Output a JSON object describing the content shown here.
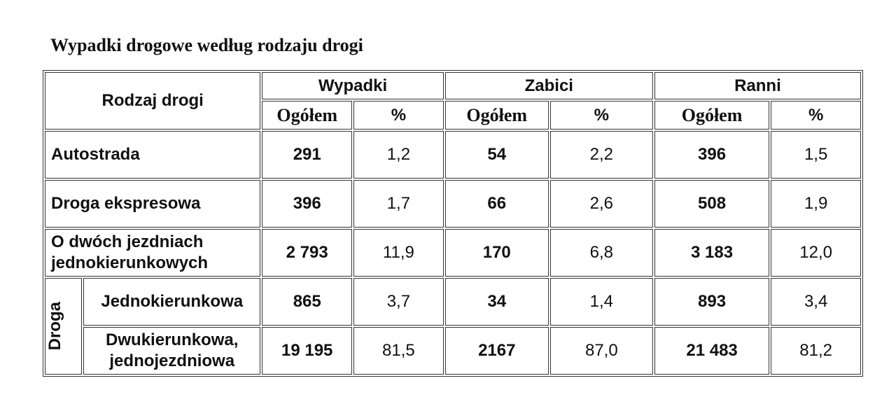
{
  "title": "Wypadki drogowe według rodzaju drogi",
  "table": {
    "header": {
      "label": "Rodzaj drogi",
      "groups": [
        "Wypadki",
        "Zabici",
        "Ranni"
      ],
      "subheaders": [
        "Ogółem",
        "%",
        "Ogółem",
        "%",
        "Ogółem",
        "%"
      ]
    },
    "rows": [
      {
        "label": "Autostrada",
        "cells": [
          "291",
          "1,2",
          "54",
          "2,2",
          "396",
          "1,5"
        ]
      },
      {
        "label": "Droga ekspresowa",
        "cells": [
          "396",
          "1,7",
          "66",
          "2,6",
          "508",
          "1,9"
        ]
      },
      {
        "label": "O dwóch jezdniach jednokierunkowych",
        "cells": [
          "2 793",
          "11,9",
          "170",
          "6,8",
          "3 183",
          "12,0"
        ]
      }
    ],
    "road_group": {
      "label": "Droga",
      "rows": [
        {
          "label": "Jednokierunkowa",
          "cells": [
            "865",
            "3,7",
            "34",
            "1,4",
            "893",
            "3,4"
          ]
        },
        {
          "label": "Dwukierunkowa, jednojezdniowa",
          "cells": [
            "19 195",
            "81,5",
            "2167",
            "87,0",
            "21 483",
            "81,2"
          ]
        }
      ]
    }
  }
}
